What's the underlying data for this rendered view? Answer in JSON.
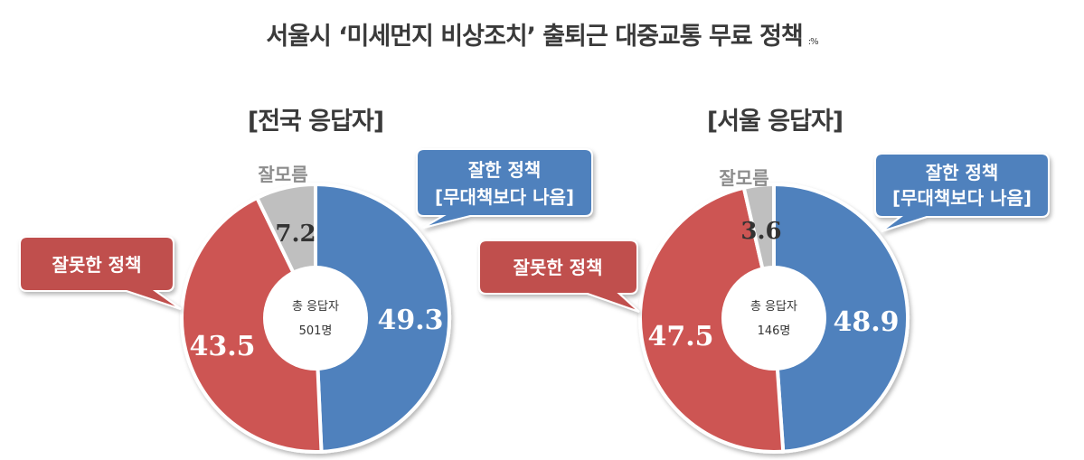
{
  "title": "서울시 ‘미세먼지 비상조치’ 출퇴근 대중교통 무료 정책",
  "unit": ":%",
  "colors": {
    "good": "#4f81bd",
    "bad": "#c9504d",
    "dk": "#bfbfbf"
  },
  "charts": [
    {
      "subtitle": "[전국 응답자]",
      "center_line1": "총 응답자",
      "center_line2": "501명",
      "good_label_line1": "잘한 정책",
      "good_label_line2": "[무대책보다 나음]",
      "bad_label": "잘못한 정책",
      "dk_label": "잘모름",
      "good_value": "49.3",
      "bad_value": "43.5",
      "dk_value": "7.2"
    },
    {
      "subtitle": "[서울 응답자]",
      "center_line1": "총 응답자",
      "center_line2": "146명",
      "good_label_line1": "잘한 정책",
      "good_label_line2": "[무대책보다 나음]",
      "bad_label": "잘못한 정책",
      "dk_label": "잘모름",
      "good_value": "48.9",
      "bad_value": "47.5",
      "dk_value": "3.6"
    }
  ],
  "chart_data": [
    {
      "type": "pie",
      "title": "[전국 응답자]",
      "categories": [
        "잘한 정책 [무대책보다 나음]",
        "잘못한 정책",
        "잘모름"
      ],
      "values": [
        49.3,
        43.5,
        7.2
      ],
      "center_text": "총 응답자 501명",
      "unit": "%"
    },
    {
      "type": "pie",
      "title": "[서울 응답자]",
      "categories": [
        "잘한 정책 [무대책보다 나음]",
        "잘못한 정책",
        "잘모름"
      ],
      "values": [
        48.9,
        47.5,
        3.6
      ],
      "center_text": "총 응답자 146명",
      "unit": "%"
    }
  ]
}
